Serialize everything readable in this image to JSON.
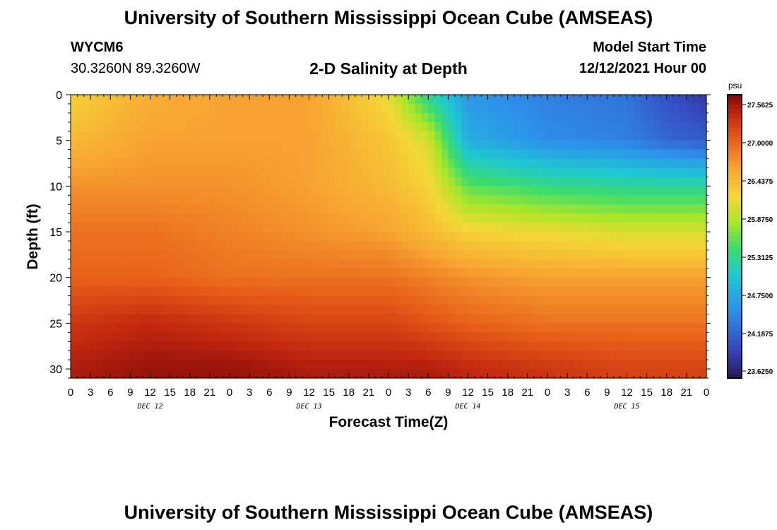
{
  "header": {
    "title": "University of Southern Mississippi Ocean Cube (AMSEAS)",
    "station": "WYCM6",
    "location": "30.3260N  89.3260W",
    "subtitle": "2-D Salinity at Depth",
    "start_label": "Model Start Time",
    "start_value": "12/12/2021 Hour 00"
  },
  "footer": {
    "title": "University of Southern Mississippi Ocean Cube (AMSEAS)"
  },
  "chart_data": {
    "type": "heatmap",
    "title": "2-D Salinity at Depth",
    "xlabel": "Forecast Time(Z)",
    "ylabel": "Depth (ft)",
    "x_range_hours": [
      0,
      96
    ],
    "y_range": [
      0,
      31
    ],
    "y_inverted": true,
    "x_tick_labels": [
      "0",
      "3",
      "6",
      "9",
      "12",
      "15",
      "18",
      "21",
      "0",
      "3",
      "6",
      "9",
      "12",
      "15",
      "18",
      "21",
      "0",
      "3",
      "6",
      "9",
      "12",
      "15",
      "18",
      "21",
      "0",
      "3",
      "6",
      "9",
      "12",
      "15",
      "18",
      "21",
      "0"
    ],
    "day_labels": [
      "DEC 12",
      "DEC 13",
      "DEC 14",
      "DEC 15"
    ],
    "y_ticks": [
      0,
      5,
      10,
      15,
      20,
      25,
      30
    ],
    "colorbar": {
      "unit": "psu",
      "ticks": [
        "27.5625",
        "27.0000",
        "26.4375",
        "25.8750",
        "25.3125",
        "24.7500",
        "24.1875",
        "23.6250"
      ],
      "min": 23.4,
      "max": 27.7
    },
    "salinity_samples": {
      "hours": [
        0,
        12,
        24,
        36,
        48,
        54,
        60,
        72,
        84,
        90,
        96
      ],
      "depths_ft": [
        0,
        5,
        10,
        15,
        20,
        25,
        30
      ],
      "values_psu": [
        [
          26.2,
          26.5,
          26.6,
          26.6,
          26.1,
          25.2,
          24.5,
          24.3,
          24.2,
          23.9,
          23.7
        ],
        [
          26.4,
          26.6,
          26.6,
          26.6,
          26.3,
          26.0,
          24.7,
          24.4,
          24.3,
          24.1,
          24.0
        ],
        [
          26.7,
          26.7,
          26.7,
          26.6,
          26.4,
          26.2,
          25.5,
          25.3,
          25.2,
          25.2,
          25.2
        ],
        [
          26.9,
          26.9,
          26.8,
          26.7,
          26.6,
          26.4,
          26.2,
          26.1,
          26.0,
          26.0,
          26.0
        ],
        [
          27.0,
          27.0,
          26.9,
          26.9,
          26.9,
          26.8,
          26.7,
          26.6,
          26.6,
          26.6,
          26.6
        ],
        [
          27.3,
          27.4,
          27.3,
          27.2,
          27.2,
          27.1,
          27.0,
          26.9,
          26.9,
          26.9,
          26.9
        ],
        [
          27.5,
          27.6,
          27.6,
          27.5,
          27.5,
          27.5,
          27.4,
          27.3,
          27.2,
          27.2,
          27.2
        ]
      ]
    }
  }
}
